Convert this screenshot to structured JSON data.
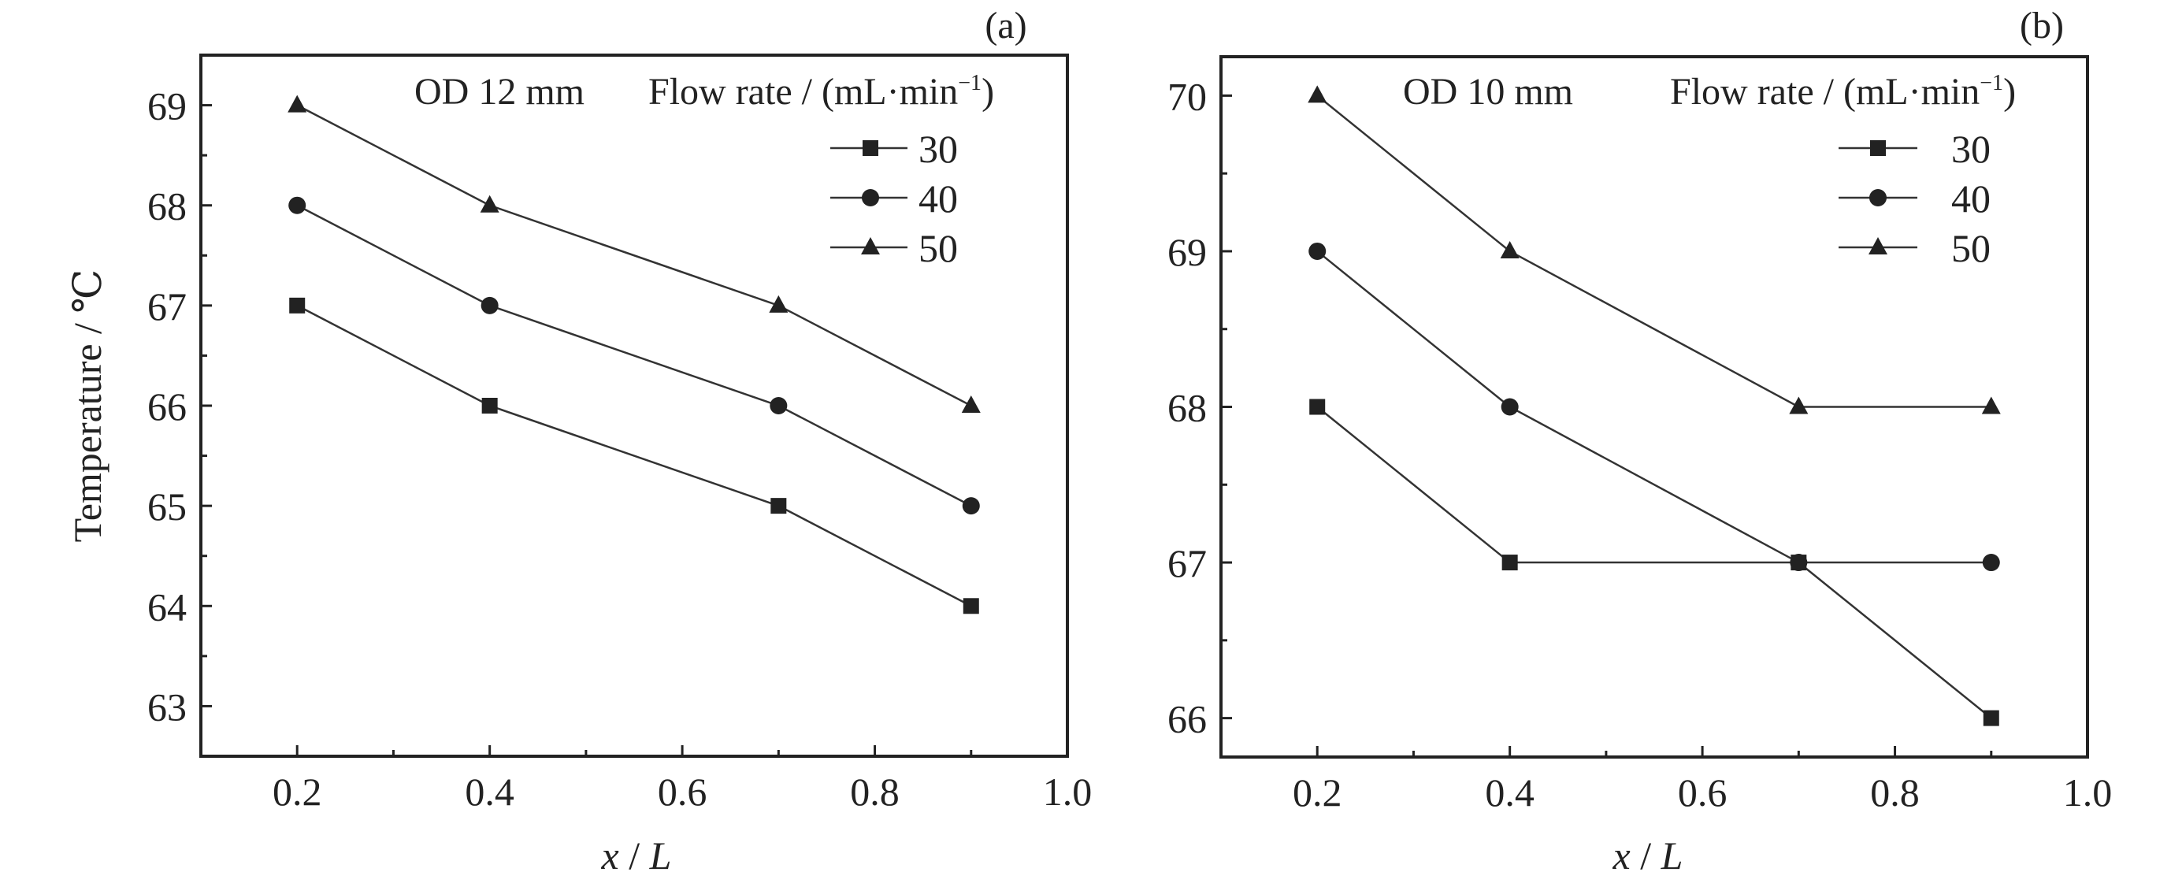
{
  "chart_data": [
    {
      "type": "line",
      "panel_label": "(a)",
      "annotation": "OD 12 mm",
      "legend_title": "Flow rate / (mL·min",
      "legend_title_sup": "−1",
      "legend_title_end": ")",
      "legend_placement": "top-right",
      "xlabel_var": "x",
      "xlabel_sep": " / ",
      "xlabel_unit": "L",
      "ylabel": "Temperature / ℃",
      "xlim": [
        0.1,
        1.0
      ],
      "ylim": [
        62.5,
        69.5
      ],
      "xticks": [
        0.2,
        0.4,
        0.6,
        0.8,
        1.0
      ],
      "xtick_labels": [
        "0.2",
        "0.4",
        "0.6",
        "0.8",
        "1.0"
      ],
      "yticks": [
        63,
        64,
        65,
        66,
        67,
        68,
        69
      ],
      "ytick_labels": [
        "63",
        "64",
        "65",
        "66",
        "67",
        "68",
        "69"
      ],
      "x": [
        0.2,
        0.4,
        0.7,
        0.9
      ],
      "series": [
        {
          "name": "30",
          "marker": "square",
          "values": [
            67,
            66,
            65,
            64
          ]
        },
        {
          "name": "40",
          "marker": "circle",
          "values": [
            68,
            67,
            66,
            65
          ]
        },
        {
          "name": "50",
          "marker": "triangle",
          "values": [
            69,
            68,
            67,
            66
          ]
        }
      ]
    },
    {
      "type": "line",
      "panel_label": "(b)",
      "annotation": "OD 10 mm",
      "legend_title": "Flow rate / (mL·min",
      "legend_title_sup": "−1",
      "legend_title_end": ")",
      "legend_placement": "top-right",
      "xlabel_var": "x",
      "xlabel_sep": " / ",
      "xlabel_unit": "L",
      "ylabel": "",
      "xlim": [
        0.1,
        1.0
      ],
      "ylim": [
        65.75,
        70.25
      ],
      "xticks": [
        0.2,
        0.4,
        0.6,
        0.8,
        1.0
      ],
      "xtick_labels": [
        "0.2",
        "0.4",
        "0.6",
        "0.8",
        "1.0"
      ],
      "yticks": [
        66,
        67,
        68,
        69,
        70
      ],
      "ytick_labels": [
        "66",
        "67",
        "68",
        "69",
        "70"
      ],
      "x": [
        0.2,
        0.4,
        0.7,
        0.9
      ],
      "series": [
        {
          "name": "30",
          "marker": "square",
          "values": [
            68,
            67,
            67,
            66
          ]
        },
        {
          "name": "40",
          "marker": "circle",
          "values": [
            69,
            68,
            67,
            67
          ]
        },
        {
          "name": "50",
          "marker": "triangle",
          "values": [
            70,
            69,
            68,
            68
          ]
        }
      ]
    }
  ],
  "colors": {
    "line": "#333333",
    "marker": "#222222",
    "axis": "#222222"
  }
}
